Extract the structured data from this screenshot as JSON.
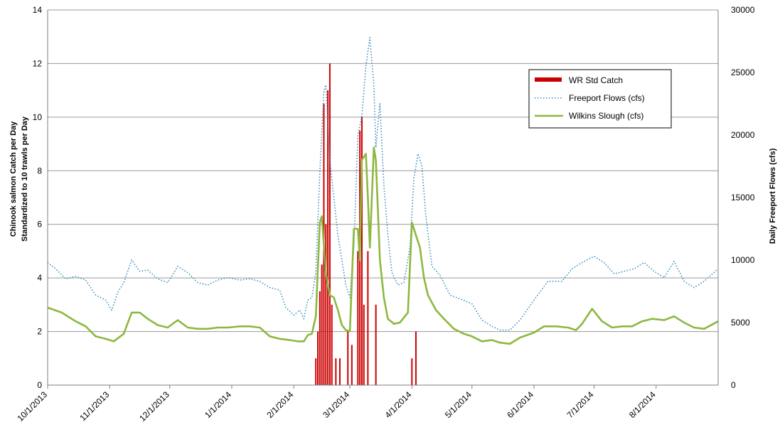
{
  "chart_data": {
    "type": "line",
    "title": "",
    "ylabel_left_line1": "Chinook salmon Catch per Day",
    "ylabel_left_line2": "Standardized  to 10 trawls per Day",
    "ylabel_right": "Daily Freeport Flows (cfs)",
    "xlabel": "",
    "x_start": "2013-10-01",
    "x_end": "2014-09-01",
    "x_tick_labels": [
      "10/1/2013",
      "11/1/2013",
      "12/1/2013",
      "1/1/2014",
      "2/1/2014",
      "3/1/2014",
      "4/1/2014",
      "5/1/2014",
      "6/1/2014",
      "7/1/2014",
      "8/1/2014"
    ],
    "x_tick_dates": [
      "2013-10-01",
      "2013-11-01",
      "2013-12-01",
      "2014-01-01",
      "2014-02-01",
      "2014-03-01",
      "2014-04-01",
      "2014-05-01",
      "2014-06-01",
      "2014-07-01",
      "2014-08-01"
    ],
    "y_left_ticks": [
      "0",
      "2",
      "4",
      "6",
      "8",
      "10",
      "12",
      "14"
    ],
    "y_right_ticks": [
      "0",
      "5000",
      "10000",
      "15000",
      "20000",
      "25000",
      "30000"
    ],
    "ylim_left": [
      0,
      14
    ],
    "ylim_right": [
      0,
      30000
    ],
    "grid": "horizontal",
    "legend_position": "top-right",
    "series": [
      {
        "name": "WR Std Catch",
        "kind": "bar",
        "axis": "left",
        "color": "#cc0000",
        "points": [
          [
            "2014-02-12",
            1.0
          ],
          [
            "2014-02-13",
            2.0
          ],
          [
            "2014-02-14",
            3.5
          ],
          [
            "2014-02-15",
            4.5
          ],
          [
            "2014-02-16",
            10.5
          ],
          [
            "2014-02-17",
            6.0
          ],
          [
            "2014-02-18",
            11.0
          ],
          [
            "2014-02-19",
            12.0
          ],
          [
            "2014-02-20",
            3.0
          ],
          [
            "2014-02-22",
            1.0
          ],
          [
            "2014-02-24",
            1.0
          ],
          [
            "2014-02-28",
            2.0
          ],
          [
            "2014-03-02",
            1.5
          ],
          [
            "2014-03-05",
            5.0
          ],
          [
            "2014-03-06",
            9.5
          ],
          [
            "2014-03-07",
            10.0
          ],
          [
            "2014-03-08",
            3.0
          ],
          [
            "2014-03-10",
            5.0
          ],
          [
            "2014-03-14",
            3.0
          ],
          [
            "2014-04-01",
            1.0
          ],
          [
            "2014-04-03",
            2.0
          ]
        ]
      },
      {
        "name": "Freeport Flows (cfs)",
        "kind": "line",
        "axis": "right",
        "color": "#3a8fbf",
        "dash": "dotted",
        "points": [
          [
            "2013-10-01",
            9800
          ],
          [
            "2013-10-05",
            9300
          ],
          [
            "2013-10-10",
            8500
          ],
          [
            "2013-10-15",
            8700
          ],
          [
            "2013-10-20",
            8400
          ],
          [
            "2013-10-25",
            7200
          ],
          [
            "2013-10-30",
            6800
          ],
          [
            "2013-11-02",
            6000
          ],
          [
            "2013-11-05",
            7400
          ],
          [
            "2013-11-08",
            8200
          ],
          [
            "2013-11-12",
            10000
          ],
          [
            "2013-11-16",
            9100
          ],
          [
            "2013-11-20",
            9200
          ],
          [
            "2013-11-25",
            8500
          ],
          [
            "2013-11-30",
            8200
          ],
          [
            "2013-12-05",
            9500
          ],
          [
            "2013-12-10",
            9000
          ],
          [
            "2013-12-15",
            8200
          ],
          [
            "2013-12-20",
            8000
          ],
          [
            "2013-12-25",
            8400
          ],
          [
            "2013-12-30",
            8600
          ],
          [
            "2014-01-05",
            8400
          ],
          [
            "2014-01-10",
            8500
          ],
          [
            "2014-01-15",
            8300
          ],
          [
            "2014-01-20",
            7800
          ],
          [
            "2014-01-25",
            7600
          ],
          [
            "2014-01-28",
            6200
          ],
          [
            "2014-02-01",
            5600
          ],
          [
            "2014-02-04",
            6000
          ],
          [
            "2014-02-06",
            5300
          ],
          [
            "2014-02-08",
            6800
          ],
          [
            "2014-02-10",
            7000
          ],
          [
            "2014-02-12",
            9000
          ],
          [
            "2014-02-14",
            17000
          ],
          [
            "2014-02-16",
            23500
          ],
          [
            "2014-02-17",
            24000
          ],
          [
            "2014-02-19",
            18000
          ],
          [
            "2014-02-21",
            15000
          ],
          [
            "2014-02-23",
            12000
          ],
          [
            "2014-02-25",
            10000
          ],
          [
            "2014-02-27",
            8000
          ],
          [
            "2014-03-01",
            7000
          ],
          [
            "2014-03-03",
            11000
          ],
          [
            "2014-03-05",
            20000
          ],
          [
            "2014-03-07",
            21500
          ],
          [
            "2014-03-09",
            25500
          ],
          [
            "2014-03-11",
            27800
          ],
          [
            "2014-03-13",
            24000
          ],
          [
            "2014-03-14",
            19000
          ],
          [
            "2014-03-16",
            22500
          ],
          [
            "2014-03-18",
            16000
          ],
          [
            "2014-03-20",
            12000
          ],
          [
            "2014-03-22",
            9000
          ],
          [
            "2014-03-25",
            8000
          ],
          [
            "2014-03-28",
            8200
          ],
          [
            "2014-03-31",
            11000
          ],
          [
            "2014-04-02",
            16500
          ],
          [
            "2014-04-04",
            18500
          ],
          [
            "2014-04-06",
            17500
          ],
          [
            "2014-04-08",
            13500
          ],
          [
            "2014-04-11",
            9500
          ],
          [
            "2014-04-15",
            8800
          ],
          [
            "2014-04-20",
            7200
          ],
          [
            "2014-04-25",
            6900
          ],
          [
            "2014-05-01",
            6500
          ],
          [
            "2014-05-06",
            5200
          ],
          [
            "2014-05-11",
            4700
          ],
          [
            "2014-05-15",
            4400
          ],
          [
            "2014-05-20",
            4400
          ],
          [
            "2014-05-25",
            5200
          ],
          [
            "2014-06-01",
            6800
          ],
          [
            "2014-06-08",
            8300
          ],
          [
            "2014-06-15",
            8300
          ],
          [
            "2014-06-20",
            9300
          ],
          [
            "2014-06-25",
            9800
          ],
          [
            "2014-07-01",
            10300
          ],
          [
            "2014-07-06",
            9800
          ],
          [
            "2014-07-11",
            8900
          ],
          [
            "2014-07-16",
            9100
          ],
          [
            "2014-07-21",
            9300
          ],
          [
            "2014-07-26",
            9800
          ],
          [
            "2014-07-31",
            9100
          ],
          [
            "2014-08-05",
            8600
          ],
          [
            "2014-08-10",
            9900
          ],
          [
            "2014-08-15",
            8300
          ],
          [
            "2014-08-20",
            7800
          ],
          [
            "2014-08-25",
            8300
          ],
          [
            "2014-09-01",
            9300
          ]
        ]
      },
      {
        "name": "Wilkins Slough (cfs)",
        "kind": "line",
        "axis": "right",
        "color": "#8db840",
        "dash": "solid",
        "points": [
          [
            "2013-10-01",
            6200
          ],
          [
            "2013-10-08",
            5800
          ],
          [
            "2013-10-15",
            5100
          ],
          [
            "2013-10-20",
            4700
          ],
          [
            "2013-10-25",
            3900
          ],
          [
            "2013-10-30",
            3700
          ],
          [
            "2013-11-03",
            3500
          ],
          [
            "2013-11-08",
            4100
          ],
          [
            "2013-11-12",
            5800
          ],
          [
            "2013-11-16",
            5800
          ],
          [
            "2013-11-20",
            5300
          ],
          [
            "2013-11-25",
            4800
          ],
          [
            "2013-11-30",
            4600
          ],
          [
            "2013-12-05",
            5200
          ],
          [
            "2013-12-10",
            4600
          ],
          [
            "2013-12-15",
            4500
          ],
          [
            "2013-12-20",
            4500
          ],
          [
            "2013-12-25",
            4600
          ],
          [
            "2013-12-30",
            4600
          ],
          [
            "2014-01-05",
            4700
          ],
          [
            "2014-01-10",
            4700
          ],
          [
            "2014-01-15",
            4600
          ],
          [
            "2014-01-20",
            3900
          ],
          [
            "2014-01-25",
            3700
          ],
          [
            "2014-01-30",
            3600
          ],
          [
            "2014-02-03",
            3500
          ],
          [
            "2014-02-06",
            3500
          ],
          [
            "2014-02-08",
            4000
          ],
          [
            "2014-02-10",
            4100
          ],
          [
            "2014-02-12",
            5500
          ],
          [
            "2014-02-14",
            13000
          ],
          [
            "2014-02-15",
            13500
          ],
          [
            "2014-02-17",
            9000
          ],
          [
            "2014-02-19",
            7200
          ],
          [
            "2014-02-21",
            7000
          ],
          [
            "2014-02-23",
            6000
          ],
          [
            "2014-02-25",
            4800
          ],
          [
            "2014-02-27",
            4400
          ],
          [
            "2014-03-01",
            4300
          ],
          [
            "2014-03-03",
            12500
          ],
          [
            "2014-03-05",
            12500
          ],
          [
            "2014-03-06",
            10000
          ],
          [
            "2014-03-07",
            18000
          ],
          [
            "2014-03-09",
            18500
          ],
          [
            "2014-03-10",
            15000
          ],
          [
            "2014-03-11",
            11000
          ],
          [
            "2014-03-13",
            19000
          ],
          [
            "2014-03-14",
            18000
          ],
          [
            "2014-03-16",
            10000
          ],
          [
            "2014-03-18",
            7000
          ],
          [
            "2014-03-20",
            5300
          ],
          [
            "2014-03-23",
            4900
          ],
          [
            "2014-03-26",
            5000
          ],
          [
            "2014-03-30",
            5800
          ],
          [
            "2014-04-01",
            13000
          ],
          [
            "2014-04-03",
            12000
          ],
          [
            "2014-04-05",
            11000
          ],
          [
            "2014-04-07",
            8600
          ],
          [
            "2014-04-09",
            7200
          ],
          [
            "2014-04-13",
            6000
          ],
          [
            "2014-04-17",
            5300
          ],
          [
            "2014-04-22",
            4500
          ],
          [
            "2014-04-27",
            4100
          ],
          [
            "2014-05-01",
            3900
          ],
          [
            "2014-05-06",
            3500
          ],
          [
            "2014-05-11",
            3600
          ],
          [
            "2014-05-15",
            3400
          ],
          [
            "2014-05-20",
            3300
          ],
          [
            "2014-05-25",
            3800
          ],
          [
            "2014-06-01",
            4200
          ],
          [
            "2014-06-06",
            4700
          ],
          [
            "2014-06-12",
            4700
          ],
          [
            "2014-06-18",
            4600
          ],
          [
            "2014-06-22",
            4400
          ],
          [
            "2014-06-25",
            4900
          ],
          [
            "2014-06-30",
            6100
          ],
          [
            "2014-07-05",
            5100
          ],
          [
            "2014-07-10",
            4600
          ],
          [
            "2014-07-15",
            4700
          ],
          [
            "2014-07-20",
            4700
          ],
          [
            "2014-07-25",
            5100
          ],
          [
            "2014-07-30",
            5300
          ],
          [
            "2014-08-05",
            5200
          ],
          [
            "2014-08-10",
            5500
          ],
          [
            "2014-08-15",
            5000
          ],
          [
            "2014-08-20",
            4600
          ],
          [
            "2014-08-25",
            4500
          ],
          [
            "2014-09-01",
            5100
          ]
        ]
      }
    ]
  }
}
